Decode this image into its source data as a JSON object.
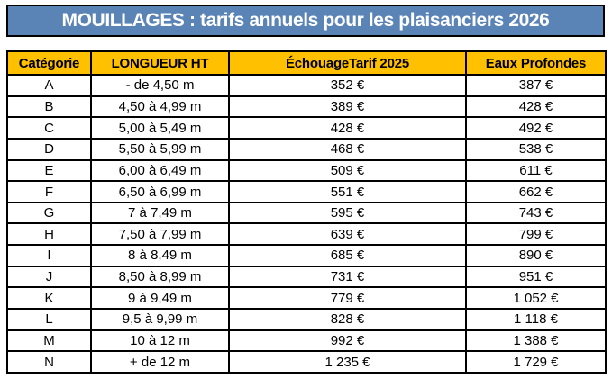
{
  "title": "MOUILLAGES : tarifs annuels pour les plaisanciers 2026",
  "colors": {
    "title_bg": "#5A83B6",
    "title_text": "#FFFFFF",
    "header_bg": "#FFC000",
    "border": "#000000"
  },
  "table": {
    "column_keys": [
      "categorie",
      "longueur-ht",
      "echouage-tarif-2025",
      "eaux-profondes"
    ],
    "headers": [
      "Catégorie",
      "LONGUEUR HT",
      "ÉchouageTarif 2025",
      "Eaux Profondes"
    ],
    "rows": [
      [
        "A",
        "- de 4,50 m",
        "352 €",
        "387 €"
      ],
      [
        "B",
        "4,50 à 4,99 m",
        "389 €",
        "428 €"
      ],
      [
        "C",
        "5,00 à 5,49 m",
        "428 €",
        "492 €"
      ],
      [
        "D",
        "5,50 à 5,99 m",
        "468 €",
        "538 €"
      ],
      [
        "E",
        "6,00 à 6,49 m",
        "509 €",
        "611 €"
      ],
      [
        "F",
        "6,50 à 6,99 m",
        "551 €",
        "662 €"
      ],
      [
        "G",
        "7 à 7,49 m",
        "595 €",
        "743 €"
      ],
      [
        "H",
        "7,50 à 7,99 m",
        "639 €",
        "799 €"
      ],
      [
        "I",
        "8 à 8,49 m",
        "685 €",
        "890 €"
      ],
      [
        "J",
        "8,50 à 8,99 m",
        "731 €",
        "951 €"
      ],
      [
        "K",
        "9 à 9,49 m",
        "779 €",
        "1 052 €"
      ],
      [
        "L",
        "9,5 à 9,99 m",
        "828 €",
        "1 118 €"
      ],
      [
        "M",
        "10 à 12 m",
        "992 €",
        "1 388 €"
      ],
      [
        "N",
        "+ de 12 m",
        "1 235 €",
        "1 729 €"
      ]
    ]
  }
}
